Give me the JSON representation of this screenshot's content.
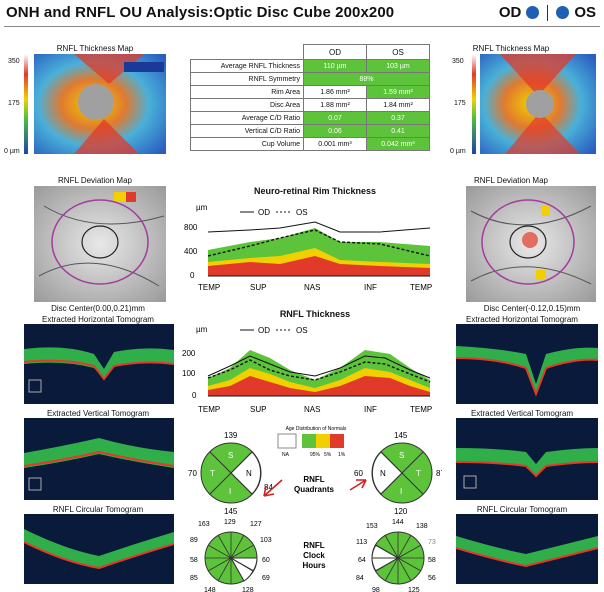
{
  "header": {
    "title": "ONH and RNFL OU Analysis:Optic Disc Cube 200x200",
    "od": "OD",
    "os": "OS"
  },
  "left": {
    "thickness_map_title": "RNFL Thickness Map",
    "scale": [
      "350",
      "175",
      "0 µm"
    ],
    "deviation_title": "RNFL Deviation Map",
    "disc_center": "Disc Center(0.00,0.21)mm",
    "horiz_title": "Extracted Horizontal Tomogram",
    "vert_title": "Extracted Vertical Tomogram",
    "circ_title": "RNFL Circular Tomogram"
  },
  "right": {
    "thickness_map_title": "RNFL Thickness Map",
    "scale": [
      "350",
      "175",
      "0 µm"
    ],
    "deviation_title": "RNFL Deviation Map",
    "disc_center": "Disc Center(-0.12,0.15)mm",
    "horiz_title": "Extracted Horizontal Tomogram",
    "vert_title": "Extracted Vertical Tomogram",
    "circ_title": "RNFL Circular Tomogram"
  },
  "metrics": {
    "headers": [
      "OD",
      "OS"
    ],
    "rows": [
      {
        "label": "Average RNFL Thickness",
        "od": "110 µm",
        "os": "103 µm"
      },
      {
        "label": "RNFL Symmetry",
        "both": "88%"
      },
      {
        "label": "Rim Area",
        "od": "1.86 mm²",
        "os": "1.59 mm²"
      },
      {
        "label": "Disc Area",
        "od": "1.88 mm²",
        "os": "1.84 mm²"
      },
      {
        "label": "Average C/D Ratio",
        "od": "0.07",
        "os": "0.37"
      },
      {
        "label": "Vertical C/D Ratio",
        "od": "0.06",
        "os": "0.41"
      },
      {
        "label": "Cup Volume",
        "od": "0.001 mm³",
        "os": "0.042 mm³"
      }
    ]
  },
  "rim_chart": {
    "title": "Neuro-retinal Rim Thickness",
    "unit": "µm",
    "legend_od": "OD",
    "legend_os": "OS",
    "yticks": [
      "800",
      "400",
      "0"
    ],
    "xticks": [
      "TEMP",
      "SUP",
      "NAS",
      "INF",
      "TEMP"
    ]
  },
  "rnfl_chart": {
    "title": "RNFL Thickness",
    "unit": "µm",
    "legend_od": "OD",
    "legend_os": "OS",
    "yticks": [
      "200",
      "100",
      "0"
    ],
    "xticks": [
      "TEMP",
      "SUP",
      "NAS",
      "INF",
      "TEMP"
    ]
  },
  "norms": {
    "title": "Age Distribution of Normals",
    "left": "NA",
    "pct": [
      "95%",
      "5%",
      "1%"
    ]
  },
  "quadrants": {
    "label_line1": "RNFL",
    "label_line2": "Quadrants",
    "od": {
      "s": "139",
      "n": "84",
      "i": "145",
      "t": "70"
    },
    "os": {
      "s": "145",
      "n": "60",
      "i": "120",
      "t": "87"
    },
    "letters": {
      "s": "S",
      "n": "N",
      "i": "I",
      "t": "T"
    }
  },
  "clock": {
    "label_line1": "RNFL",
    "label_line2": "Clock",
    "label_line3": "Hours",
    "od": [
      "163",
      "129",
      "127",
      "89",
      "103",
      "58",
      "60",
      "85",
      "69",
      "148",
      "128"
    ],
    "os": [
      "153",
      "144",
      "138",
      "113",
      "73",
      "64",
      "58",
      "84",
      "56",
      "98",
      "125"
    ]
  },
  "colors": {
    "green": "#5cc33a",
    "red": "#e23a2a",
    "yellow": "#f2d000",
    "blue": "#1f5fb4",
    "purple": "#a23c9e"
  }
}
